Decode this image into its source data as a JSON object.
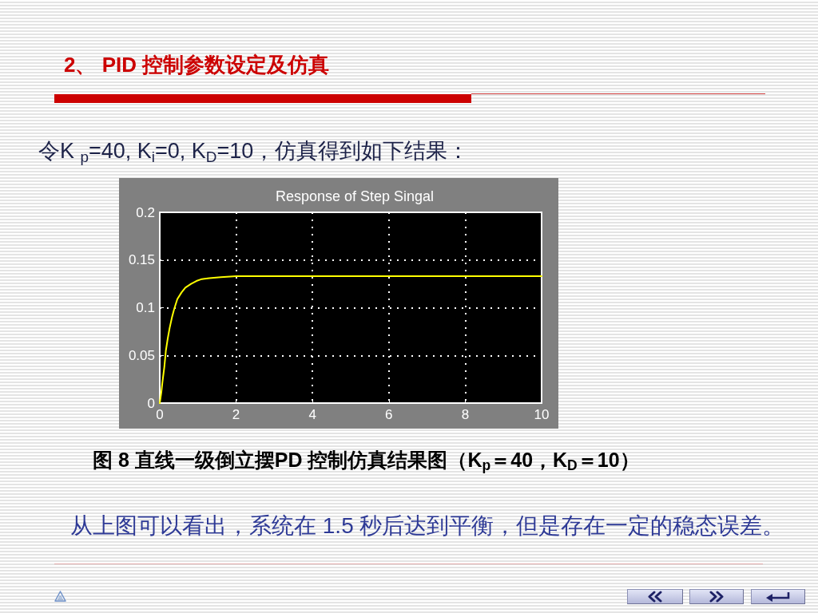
{
  "chart_data": {
    "type": "line",
    "title": "Response of Step Singal",
    "annotations": [
      "2、 PID 控制参数设定及仿真",
      "令K $_{p}$=40, K$_{i}$=0, K$_{D}$=10，仿真得到如下结果：",
      "图 8 直线一级倒立摆PD 控制仿真结果图（K$_{p}$＝40，K$_{D}$＝10）",
      "从上图可以看出，系统在 1.5 秒后达到平衡，但是存在一定的稳态误差。"
    ],
    "x": [
      0,
      0.04,
      0.07,
      0.12,
      0.16,
      0.21,
      0.26,
      0.32,
      0.38,
      0.46,
      0.57,
      0.67,
      0.82,
      0.96,
      1.1,
      1.3,
      1.6,
      2,
      10
    ],
    "values": [
      0,
      0.011,
      0.022,
      0.038,
      0.055,
      0.068,
      0.079,
      0.09,
      0.099,
      0.109,
      0.116,
      0.121,
      0.125,
      0.128,
      0.13,
      0.131,
      0.132,
      0.133,
      0.133
    ],
    "color": "#ffff00",
    "xlim": [
      0,
      10
    ],
    "xticks": [
      0,
      2,
      4,
      6,
      8,
      10
    ],
    "ylim": [
      0,
      0.2
    ],
    "yticks": [
      0,
      0.05,
      0.1,
      0.15,
      0.2
    ],
    "grid": true,
    "marker": "none",
    "line_style": "solid"
  }
}
